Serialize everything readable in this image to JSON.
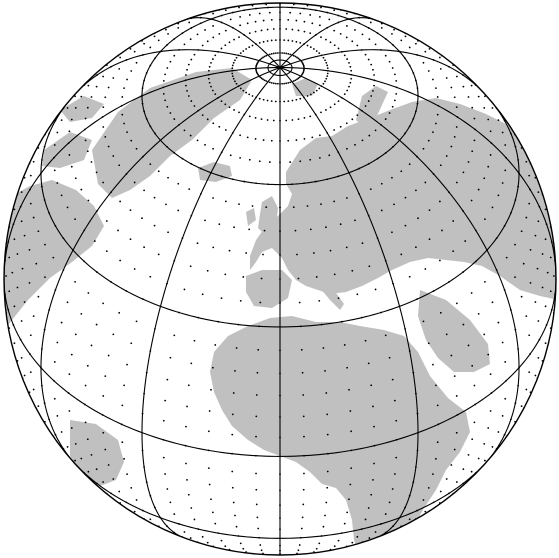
{
  "map": {
    "projection": "orthographic",
    "center_lon": 0,
    "center_lat": 40,
    "graticule_degrees": 30,
    "dot_grid_degrees": 5,
    "colors": {
      "background": "#ffffff",
      "land": "#c0c0c0",
      "ocean": "#ffffff",
      "graticule": "#000000",
      "dots": "#000000",
      "outline": "#000000"
    }
  }
}
